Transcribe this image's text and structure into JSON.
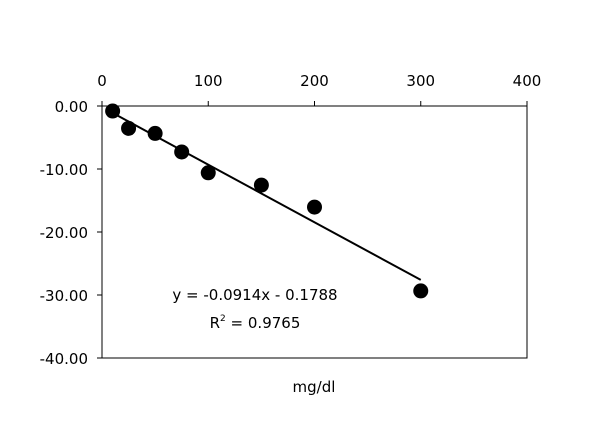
{
  "chart_data": {
    "type": "scatter",
    "title": "",
    "xlabel": "mg/dl",
    "ylabel": "",
    "xlim": [
      0,
      400
    ],
    "ylim": [
      -40,
      0
    ],
    "x_ticks": [
      "0",
      "100",
      "200",
      "300",
      "400"
    ],
    "x_tick_values": [
      0,
      100,
      200,
      300,
      400
    ],
    "y_ticks": [
      "0.00",
      "-10.00",
      "-20.00",
      "-30.00",
      "-40.00"
    ],
    "y_tick_values": [
      0,
      -10,
      -20,
      -30,
      -40
    ],
    "x_axis_position": "top",
    "grid": false,
    "series": [
      {
        "name": "data",
        "x": [
          10,
          25,
          50,
          75,
          100,
          150,
          200,
          300
        ],
        "y": [
          -0.8,
          -3.55,
          -4.35,
          -7.3,
          -10.6,
          -12.55,
          -16.05,
          -29.35
        ]
      }
    ],
    "trendline": {
      "slope": -0.0914,
      "intercept": -0.1788,
      "x_range": [
        10,
        300
      ]
    },
    "annotations": {
      "equation": "y = -0.0914x - 0.1788",
      "r2_label": "R",
      "r2_sup": "2",
      "r2_value": " = 0.9765"
    }
  }
}
